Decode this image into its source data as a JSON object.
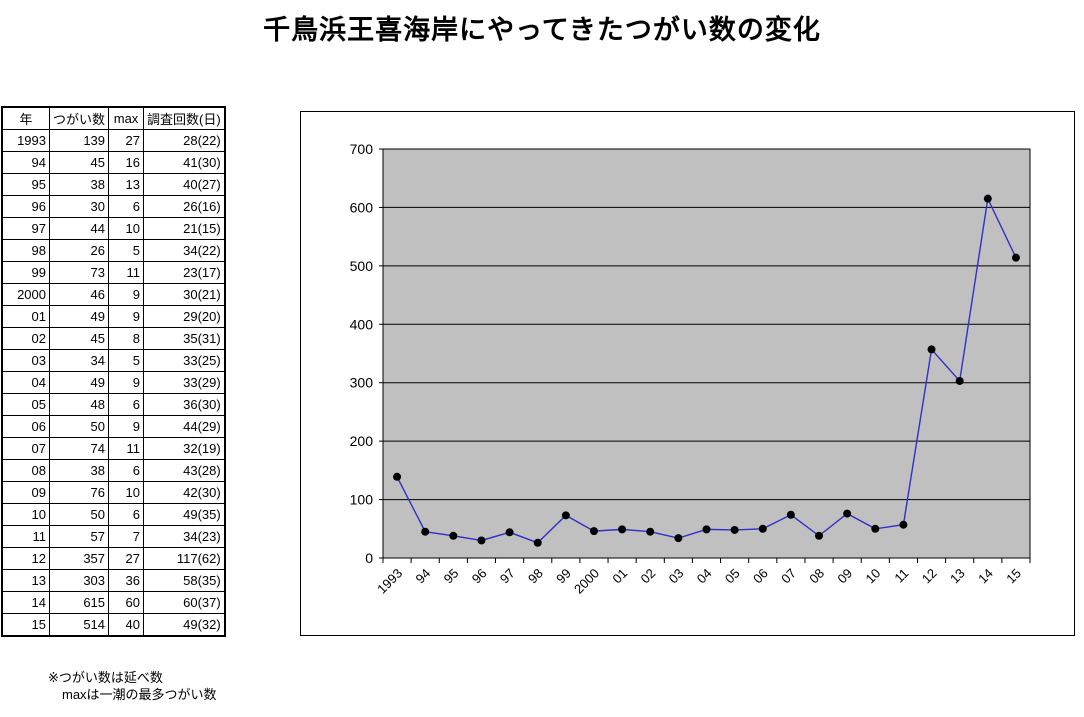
{
  "title": "千鳥浜王喜海岸にやってきたつがい数の変化",
  "table": {
    "headers": [
      "年",
      "つがい数",
      "max",
      "調査回数(日)"
    ],
    "rows": [
      [
        "1993",
        "139",
        "27",
        "28(22)"
      ],
      [
        "94",
        "45",
        "16",
        "41(30)"
      ],
      [
        "95",
        "38",
        "13",
        "40(27)"
      ],
      [
        "96",
        "30",
        "6",
        "26(16)"
      ],
      [
        "97",
        "44",
        "10",
        "21(15)"
      ],
      [
        "98",
        "26",
        "5",
        "34(22)"
      ],
      [
        "99",
        "73",
        "11",
        "23(17)"
      ],
      [
        "2000",
        "46",
        "9",
        "30(21)"
      ],
      [
        "01",
        "49",
        "9",
        "29(20)"
      ],
      [
        "02",
        "45",
        "8",
        "35(31)"
      ],
      [
        "03",
        "34",
        "5",
        "33(25)"
      ],
      [
        "04",
        "49",
        "9",
        "33(29)"
      ],
      [
        "05",
        "48",
        "6",
        "36(30)"
      ],
      [
        "06",
        "50",
        "9",
        "44(29)"
      ],
      [
        "07",
        "74",
        "11",
        "32(19)"
      ],
      [
        "08",
        "38",
        "6",
        "43(28)"
      ],
      [
        "09",
        "76",
        "10",
        "42(30)"
      ],
      [
        "10",
        "50",
        "6",
        "49(35)"
      ],
      [
        "11",
        "57",
        "7",
        "34(23)"
      ],
      [
        "12",
        "357",
        "27",
        "117(62)"
      ],
      [
        "13",
        "303",
        "36",
        "58(35)"
      ],
      [
        "14",
        "615",
        "60",
        "60(37)"
      ],
      [
        "15",
        "514",
        "40",
        "49(32)"
      ]
    ]
  },
  "footnote": {
    "line1": "※つがい数は延べ数",
    "line2": "maxは一潮の最多つがい数"
  },
  "chart_data": {
    "type": "line",
    "title": "",
    "xlabel": "",
    "ylabel": "",
    "categories": [
      "1993",
      "94",
      "95",
      "96",
      "97",
      "98",
      "99",
      "2000",
      "01",
      "02",
      "03",
      "04",
      "05",
      "06",
      "07",
      "08",
      "09",
      "10",
      "11",
      "12",
      "13",
      "14",
      "15"
    ],
    "values": [
      139,
      45,
      38,
      30,
      44,
      26,
      73,
      46,
      49,
      45,
      34,
      49,
      48,
      50,
      74,
      38,
      76,
      50,
      57,
      357,
      303,
      615,
      514
    ],
    "ylim": [
      0,
      700
    ],
    "ytick_interval": 100,
    "yticks": [
      "0",
      "100",
      "200",
      "300",
      "400",
      "500",
      "600",
      "700"
    ],
    "grid": true,
    "legend": false,
    "colors": {
      "line": "#3030c8",
      "marker": "#000000",
      "plot_bg": "#c0c0c0",
      "grid": "#000000",
      "axis": "#000000"
    }
  }
}
